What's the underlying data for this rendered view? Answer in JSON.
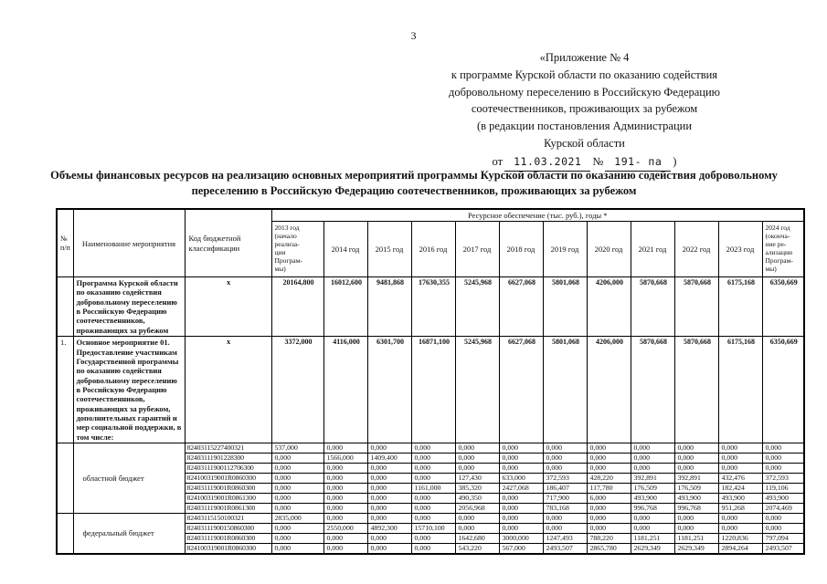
{
  "page": {
    "number": "3"
  },
  "header": {
    "lines": [
      "«Приложение № 4",
      "к программе Курской области по оказанию содействия",
      "добровольному переселению в Российскую Федерацию",
      "соотечественников, проживающих за рубежом",
      "(в редакции постановления Администрации",
      "Курской области"
    ],
    "date_prefix": "от",
    "date": "11.03.2021",
    "number_label": "№",
    "number_value": "191- па",
    "close_paren": ")"
  },
  "title": "Объемы финансовых ресурсов на реализацию основных мероприятий программы Курской области по оказанию содействия добровольному переселению в Российскую Федерацию соотечественников, проживающих за рубежом",
  "table": {
    "header": {
      "col_num": "№\nп/п",
      "col_name": "Наименование мероприятия",
      "col_code": "Код бюджетной\nклассификации",
      "resources_span": "Ресурсное обеспечение (тыс. руб.), годы *",
      "years": [
        "2013 год\n(начало\nреализа-\nции\nПрограм-\nмы)",
        "2014 год",
        "2015 год",
        "2016 год",
        "2017 год",
        "2018 год",
        "2019 год",
        "2020 год",
        "2021 год",
        "2022 год",
        "2023 год",
        "2024 год\n(оконча-\nние ре-\nализации\nПрограм-\nмы)"
      ]
    },
    "main_rows": [
      {
        "num": "",
        "name": "Программа Курской области по оказанию содействия добровольному переселению в Российскую Федерацию соотечественников, проживающих за рубежом",
        "code": "х",
        "values": [
          "20164,800",
          "16012,600",
          "9481,868",
          "17630,355",
          "5245,968",
          "6627,068",
          "5801,068",
          "4206,000",
          "5870,668",
          "5870,668",
          "6175,168",
          "6350,669"
        ]
      },
      {
        "num": "1.",
        "name": "Основное мероприятие 01. Предоставление участникам Государственной программы по оказанию содействия добровольному переселению в Российскую Федерацию соотечественников, проживающих за рубежом, дополнительных гарантий и мер социальной поддержки, в том числе:",
        "code": "х",
        "values": [
          "3372,000",
          "4116,000",
          "6301,700",
          "16871,100",
          "5245,968",
          "6627,068",
          "5801,068",
          "4206,000",
          "5870,668",
          "5870,668",
          "6175,168",
          "6350,669"
        ]
      }
    ],
    "groups": [
      {
        "label": "областной бюджет",
        "rows": [
          {
            "code": "82403115227400321",
            "values": [
              "537,000",
              "0,000",
              "0,000",
              "0,000",
              "0,000",
              "0,000",
              "0,000",
              "0,000",
              "0,000",
              "0,000",
              "0,000",
              "0,000"
            ]
          },
          {
            "code": "82403111901228300",
            "values": [
              "0,000",
              "1566,000",
              "1409,400",
              "0,000",
              "0,000",
              "0,000",
              "0,000",
              "0,000",
              "0,000",
              "0,000",
              "0,000",
              "0,000"
            ]
          },
          {
            "code": "82403111900112706300",
            "values": [
              "0,000",
              "0,000",
              "0,000",
              "0,000",
              "0,000",
              "0,000",
              "0,000",
              "0,000",
              "0,000",
              "0,000",
              "0,000",
              "0,000"
            ]
          },
          {
            "code": "824100319001R0860300",
            "values": [
              "0,000",
              "0,000",
              "0,000",
              "0,000",
              "127,430",
              "633,000",
              "372,593",
              "428,220",
              "392,891",
              "392,891",
              "432,476",
              "372,593"
            ]
          },
          {
            "code": "824031119001R0860300",
            "values": [
              "0,000",
              "0,000",
              "0,000",
              "1161,000",
              "385,320",
              "2427,068",
              "186,407",
              "117,780",
              "176,509",
              "176,509",
              "182,424",
              "119,106"
            ]
          },
          {
            "code": "824100319001R0861300",
            "values": [
              "0,000",
              "0,000",
              "0,000",
              "0,000",
              "490,350",
              "0,000",
              "717,900",
              "6,000",
              "493,900",
              "493,900",
              "493,900",
              "493,900"
            ]
          },
          {
            "code": "824031119001R0861300",
            "values": [
              "0,000",
              "0,000",
              "0,000",
              "0,000",
              "2056,968",
              "0,000",
              "783,168",
              "0,000",
              "996,768",
              "996,768",
              "951,268",
              "2074,469"
            ]
          }
        ]
      },
      {
        "label": "федеральный бюджет",
        "rows": [
          {
            "code": "82403115150100321",
            "values": [
              "2835,000",
              "0,000",
              "0,000",
              "0,000",
              "0,000",
              "0,000",
              "0,000",
              "0,000",
              "0,000",
              "0,000",
              "0,000",
              "0,000"
            ]
          },
          {
            "code": "82403111900150860300",
            "values": [
              "0,000",
              "2550,000",
              "4892,300",
              "15710,100",
              "0,000",
              "0,000",
              "0,000",
              "0,000",
              "0,000",
              "0,000",
              "0,000",
              "0,000"
            ]
          },
          {
            "code": "824031119001R0860300",
            "values": [
              "0,000",
              "0,000",
              "0,000",
              "0,000",
              "1642,680",
              "3000,000",
              "1247,493",
              "788,220",
              "1181,251",
              "1181,251",
              "1220,836",
              "797,094"
            ]
          },
          {
            "code": "824100319001R0860300",
            "values": [
              "0,000",
              "0,000",
              "0,000",
              "0,000",
              "543,220",
              "567,000",
              "2493,507",
              "2865,780",
              "2629,349",
              "2629,349",
              "2894,264",
              "2493,507"
            ]
          }
        ]
      }
    ]
  }
}
